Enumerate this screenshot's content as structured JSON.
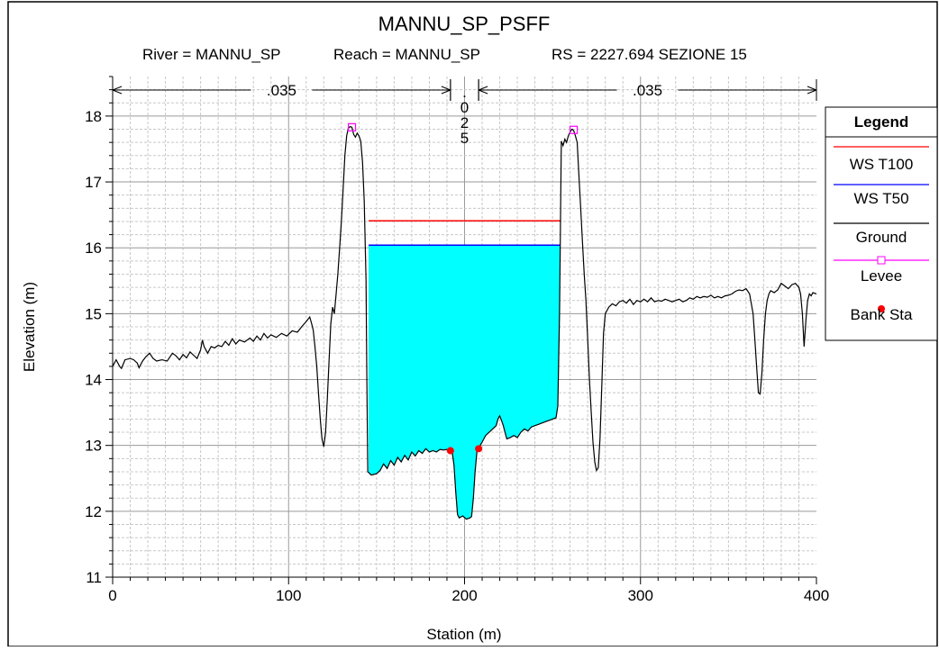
{
  "chart_data": {
    "type": "line",
    "title": "MANNU_SP_PSFF",
    "subtitle": {
      "river": "River = MANNU_SP",
      "reach": "Reach = MANNU_SP",
      "rs": "RS = 2227.694  SEZIONE 15"
    },
    "xlabel": "Station (m)",
    "ylabel": "Elevation (m)",
    "xlim": [
      0,
      400
    ],
    "ylim": [
      11,
      18.6
    ],
    "x_ticks": [
      0,
      100,
      200,
      300,
      400
    ],
    "y_ticks": [
      11,
      12,
      13,
      14,
      15,
      16,
      17,
      18
    ],
    "grid": true,
    "legend_position": "right",
    "manning": [
      {
        "label": ".035",
        "start": 0,
        "end": 192
      },
      {
        "label": "025",
        "start": 192,
        "end": 208,
        "dotted": true
      },
      {
        "label": ".035",
        "start": 208,
        "end": 400
      }
    ],
    "water_surfaces": [
      {
        "name": "WS T100",
        "color": "#ff0000",
        "elevation": 16.41,
        "x_start": 145.5,
        "x_end": 254.5
      },
      {
        "name": "WS T50",
        "color": "#0000ff",
        "elevation": 16.04,
        "x_start": 145.5,
        "x_end": 254.5,
        "fill": "#00ffff"
      }
    ],
    "ground": {
      "name": "Ground",
      "color": "#000000",
      "points": [
        [
          0,
          14.2
        ],
        [
          2,
          14.3
        ],
        [
          4,
          14.2
        ],
        [
          5,
          14.17
        ],
        [
          7,
          14.3
        ],
        [
          10,
          14.32
        ],
        [
          12,
          14.3
        ],
        [
          14,
          14.25
        ],
        [
          15,
          14.18
        ],
        [
          17,
          14.28
        ],
        [
          19,
          14.35
        ],
        [
          21,
          14.4
        ],
        [
          23,
          14.32
        ],
        [
          25,
          14.28
        ],
        [
          28,
          14.3
        ],
        [
          31,
          14.28
        ],
        [
          34,
          14.4
        ],
        [
          36,
          14.36
        ],
        [
          38,
          14.3
        ],
        [
          40,
          14.38
        ],
        [
          42,
          14.33
        ],
        [
          44,
          14.42
        ],
        [
          46,
          14.37
        ],
        [
          48,
          14.32
        ],
        [
          50,
          14.45
        ],
        [
          51,
          14.6
        ],
        [
          52,
          14.5
        ],
        [
          54,
          14.4
        ],
        [
          56,
          14.5
        ],
        [
          58,
          14.48
        ],
        [
          60,
          14.52
        ],
        [
          62,
          14.5
        ],
        [
          64,
          14.58
        ],
        [
          66,
          14.52
        ],
        [
          68,
          14.62
        ],
        [
          70,
          14.54
        ],
        [
          72,
          14.6
        ],
        [
          75,
          14.57
        ],
        [
          78,
          14.63
        ],
        [
          80,
          14.58
        ],
        [
          82,
          14.66
        ],
        [
          84,
          14.6
        ],
        [
          86,
          14.7
        ],
        [
          88,
          14.63
        ],
        [
          90,
          14.68
        ],
        [
          93,
          14.64
        ],
        [
          96,
          14.7
        ],
        [
          99,
          14.66
        ],
        [
          102,
          14.74
        ],
        [
          105,
          14.72
        ],
        [
          108,
          14.82
        ],
        [
          110,
          14.88
        ],
        [
          112,
          14.95
        ],
        [
          113,
          14.86
        ],
        [
          114,
          14.75
        ],
        [
          115,
          14.5
        ],
        [
          116,
          14.2
        ],
        [
          117,
          13.8
        ],
        [
          118,
          13.4
        ],
        [
          119,
          13.1
        ],
        [
          120,
          12.98
        ],
        [
          121,
          13.2
        ],
        [
          122,
          13.7
        ],
        [
          123,
          14.3
        ],
        [
          124,
          14.85
        ],
        [
          125,
          15.1
        ],
        [
          126,
          15.0
        ],
        [
          127,
          15.3
        ],
        [
          128,
          15.6
        ],
        [
          129,
          16.0
        ],
        [
          130,
          16.4
        ],
        [
          131,
          16.9
        ],
        [
          132,
          17.4
        ],
        [
          133,
          17.7
        ],
        [
          134,
          17.82
        ],
        [
          135,
          17.84
        ],
        [
          136,
          17.83
        ],
        [
          137,
          17.72
        ],
        [
          138,
          17.68
        ],
        [
          139,
          17.74
        ],
        [
          140,
          17.7
        ],
        [
          141,
          17.62
        ],
        [
          142,
          17.3
        ],
        [
          143,
          16.7
        ],
        [
          144,
          15.5
        ],
        [
          144.5,
          14.0
        ],
        [
          145,
          12.6
        ],
        [
          147,
          12.55
        ],
        [
          150,
          12.57
        ],
        [
          152,
          12.62
        ],
        [
          154,
          12.72
        ],
        [
          156,
          12.65
        ],
        [
          158,
          12.77
        ],
        [
          160,
          12.7
        ],
        [
          162,
          12.82
        ],
        [
          164,
          12.75
        ],
        [
          166,
          12.85
        ],
        [
          168,
          12.78
        ],
        [
          170,
          12.9
        ],
        [
          172,
          12.84
        ],
        [
          174,
          12.92
        ],
        [
          176,
          12.88
        ],
        [
          178,
          12.95
        ],
        [
          180,
          12.9
        ],
        [
          182,
          12.92
        ],
        [
          184,
          12.9
        ],
        [
          186,
          12.94
        ],
        [
          188,
          12.93
        ],
        [
          190,
          12.94
        ],
        [
          191,
          12.93
        ],
        [
          193,
          12.9
        ],
        [
          194,
          12.7
        ],
        [
          195,
          12.3
        ],
        [
          196,
          11.95
        ],
        [
          197,
          11.9
        ],
        [
          199,
          11.93
        ],
        [
          201,
          11.88
        ],
        [
          203,
          11.9
        ],
        [
          204,
          11.92
        ],
        [
          205,
          12.2
        ],
        [
          206,
          12.6
        ],
        [
          207,
          12.9
        ],
        [
          208,
          12.96
        ],
        [
          210,
          13.05
        ],
        [
          212,
          13.15
        ],
        [
          214,
          13.2
        ],
        [
          216,
          13.25
        ],
        [
          218,
          13.3
        ],
        [
          219,
          13.4
        ],
        [
          220,
          13.45
        ],
        [
          221,
          13.38
        ],
        [
          222,
          13.3
        ],
        [
          223,
          13.2
        ],
        [
          224,
          13.1
        ],
        [
          226,
          13.12
        ],
        [
          228,
          13.15
        ],
        [
          230,
          13.12
        ],
        [
          232,
          13.2
        ],
        [
          234,
          13.25
        ],
        [
          236,
          13.22
        ],
        [
          238,
          13.28
        ],
        [
          240,
          13.3
        ],
        [
          242,
          13.32
        ],
        [
          244,
          13.34
        ],
        [
          246,
          13.36
        ],
        [
          248,
          13.38
        ],
        [
          250,
          13.4
        ],
        [
          252,
          13.42
        ],
        [
          253,
          13.6
        ],
        [
          254,
          15.0
        ],
        [
          255,
          17.62
        ],
        [
          256,
          17.55
        ],
        [
          257,
          17.65
        ],
        [
          258,
          17.6
        ],
        [
          259,
          17.7
        ],
        [
          260,
          17.76
        ],
        [
          261,
          17.8
        ],
        [
          262,
          17.78
        ],
        [
          263,
          17.7
        ],
        [
          264,
          17.6
        ],
        [
          265,
          17.1
        ],
        [
          266,
          16.6
        ],
        [
          267,
          16.1
        ],
        [
          268,
          15.6
        ],
        [
          269,
          15.2
        ],
        [
          270,
          14.6
        ],
        [
          271,
          14.0
        ],
        [
          272,
          13.5
        ],
        [
          273,
          13.05
        ],
        [
          274,
          12.75
        ],
        [
          275,
          12.62
        ],
        [
          276,
          12.66
        ],
        [
          277,
          13.1
        ],
        [
          278,
          13.9
        ],
        [
          279,
          14.7
        ],
        [
          280,
          15.0
        ],
        [
          282,
          15.1
        ],
        [
          284,
          15.15
        ],
        [
          286,
          15.12
        ],
        [
          288,
          15.18
        ],
        [
          290,
          15.2
        ],
        [
          292,
          15.16
        ],
        [
          294,
          15.22
        ],
        [
          296,
          15.14
        ],
        [
          298,
          15.2
        ],
        [
          300,
          15.18
        ],
        [
          302,
          15.22
        ],
        [
          304,
          15.18
        ],
        [
          306,
          15.24
        ],
        [
          308,
          15.18
        ],
        [
          310,
          15.2
        ],
        [
          312,
          15.19
        ],
        [
          314,
          15.22
        ],
        [
          316,
          15.2
        ],
        [
          318,
          15.18
        ],
        [
          320,
          15.2
        ],
        [
          322,
          15.22
        ],
        [
          324,
          15.18
        ],
        [
          326,
          15.2
        ],
        [
          328,
          15.24
        ],
        [
          330,
          15.22
        ],
        [
          332,
          15.26
        ],
        [
          334,
          15.24
        ],
        [
          336,
          15.26
        ],
        [
          338,
          15.25
        ],
        [
          340,
          15.28
        ],
        [
          342,
          15.24
        ],
        [
          344,
          15.26
        ],
        [
          346,
          15.24
        ],
        [
          348,
          15.27
        ],
        [
          350,
          15.28
        ],
        [
          352,
          15.3
        ],
        [
          354,
          15.34
        ],
        [
          356,
          15.36
        ],
        [
          358,
          15.35
        ],
        [
          360,
          15.38
        ],
        [
          362,
          15.3
        ],
        [
          364,
          15.0
        ],
        [
          365,
          14.6
        ],
        [
          366,
          14.2
        ],
        [
          367,
          13.8
        ],
        [
          368,
          13.78
        ],
        [
          369,
          14.1
        ],
        [
          370,
          14.6
        ],
        [
          371,
          15.0
        ],
        [
          372,
          15.2
        ],
        [
          373,
          15.3
        ],
        [
          374,
          15.35
        ],
        [
          376,
          15.32
        ],
        [
          378,
          15.36
        ],
        [
          380,
          15.46
        ],
        [
          382,
          15.42
        ],
        [
          384,
          15.38
        ],
        [
          386,
          15.44
        ],
        [
          388,
          15.46
        ],
        [
          390,
          15.4
        ],
        [
          391,
          15.3
        ],
        [
          392,
          15.0
        ],
        [
          393,
          14.5
        ],
        [
          394,
          14.9
        ],
        [
          395,
          15.2
        ],
        [
          396,
          15.3
        ],
        [
          397,
          15.27
        ],
        [
          398,
          15.32
        ],
        [
          400,
          15.3
        ]
      ]
    },
    "levees": [
      {
        "x": 136,
        "elevation": 17.83
      },
      {
        "x": 262,
        "elevation": 17.79
      }
    ],
    "bank_stations": [
      {
        "x": 192,
        "elevation": 12.92
      },
      {
        "x": 208,
        "elevation": 12.95
      }
    ],
    "legend": {
      "title": "Legend",
      "items": [
        {
          "label": "WS T100",
          "color": "#ff0000",
          "kind": "line"
        },
        {
          "label": "WS T50",
          "color": "#0000ff",
          "kind": "line"
        },
        {
          "label": "Ground",
          "color": "#000000",
          "kind": "line"
        },
        {
          "label": "Levee",
          "color": "#ff00ff",
          "kind": "levee"
        },
        {
          "label": "Bank Sta",
          "color": "#ff0000",
          "kind": "dot"
        }
      ]
    }
  }
}
